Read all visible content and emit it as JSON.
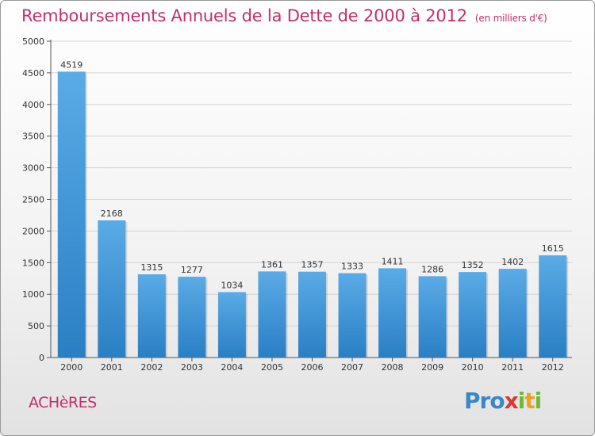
{
  "header": {
    "title": "Remboursements Annuels de la Dette de 2000 à 2012",
    "unit_note": "(en milliers d'€)"
  },
  "commune": "ACHèRES",
  "brand": "Proxiti",
  "colors": {
    "accent": "#c0306c",
    "bar_top": "#5aabe6",
    "bar_bottom": "#2a7fc4",
    "grid": "#d4d4d4"
  },
  "chart_data": {
    "type": "bar",
    "categories": [
      "2000",
      "2001",
      "2002",
      "2003",
      "2004",
      "2005",
      "2006",
      "2007",
      "2008",
      "2009",
      "2010",
      "2011",
      "2012"
    ],
    "values": [
      4519,
      2168,
      1315,
      1277,
      1034,
      1361,
      1357,
      1333,
      1411,
      1286,
      1352,
      1402,
      1615
    ],
    "ylim": [
      0,
      5000
    ],
    "yticks": [
      0,
      500,
      1000,
      1500,
      2000,
      2500,
      3000,
      3500,
      4000,
      4500,
      5000
    ],
    "grid": true
  }
}
